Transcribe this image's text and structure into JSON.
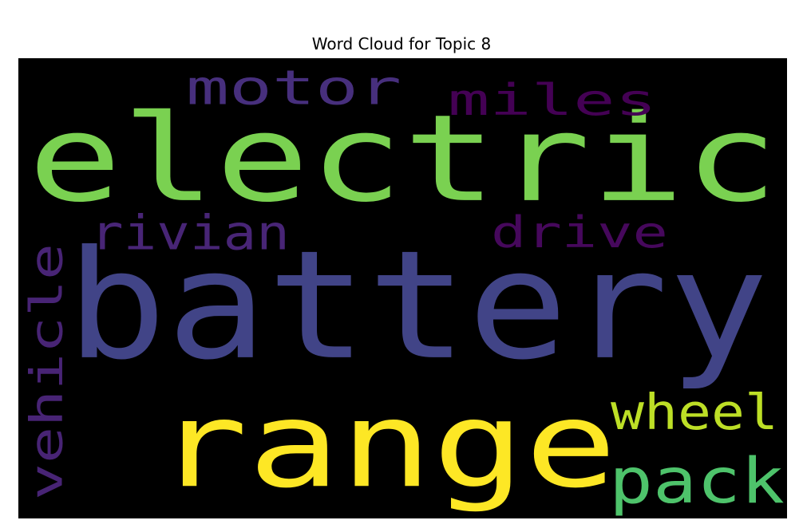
{
  "chart_data": {
    "type": "wordcloud",
    "title": "Word Cloud for Topic 8",
    "background": "#000000",
    "colormap": "viridis",
    "words": [
      {
        "text": "electric",
        "color": "#7ad151"
      },
      {
        "text": "battery",
        "color": "#414487"
      },
      {
        "text": "range",
        "color": "#fde725"
      },
      {
        "text": "motor",
        "color": "#472f7d"
      },
      {
        "text": "miles",
        "color": "#440154"
      },
      {
        "text": "rivian",
        "color": "#482576"
      },
      {
        "text": "drive",
        "color": "#46085c"
      },
      {
        "text": "vehicle",
        "color": "#482475"
      },
      {
        "text": "wheel",
        "color": "#bddf26"
      },
      {
        "text": "pack",
        "color": "#4ec36b"
      }
    ]
  }
}
